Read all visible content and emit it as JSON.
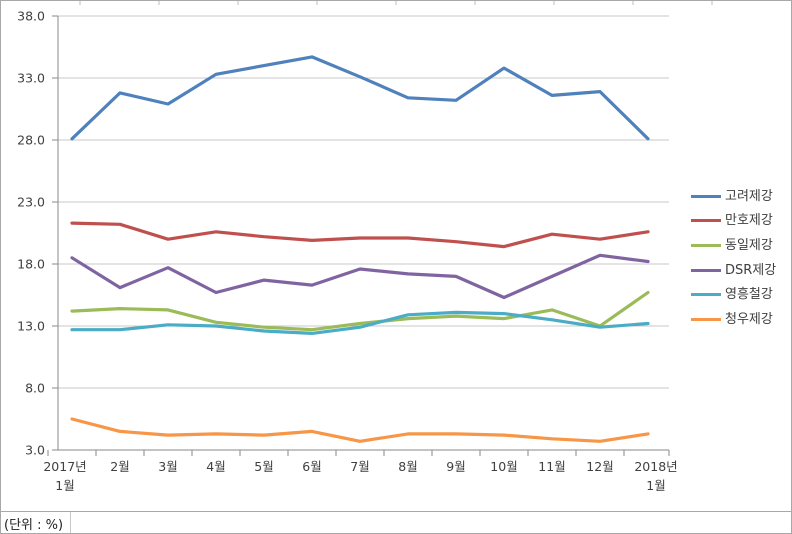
{
  "unit_label": "(단위 : %)",
  "chart_data": {
    "type": "line",
    "title": "",
    "categories": [
      "2017년 1월",
      "2월",
      "3월",
      "4월",
      "5월",
      "6월",
      "7월",
      "8월",
      "9월",
      "10월",
      "11월",
      "12월",
      "2018년 1월"
    ],
    "series": [
      {
        "name": "고려제강",
        "color": "#4F81BD",
        "values": [
          28.1,
          31.8,
          30.9,
          33.3,
          34.0,
          34.7,
          33.1,
          31.4,
          31.2,
          33.8,
          31.6,
          31.9,
          28.1
        ]
      },
      {
        "name": "만호제강",
        "color": "#C0504D",
        "values": [
          21.3,
          21.2,
          20.0,
          20.6,
          20.2,
          19.9,
          20.1,
          20.1,
          19.8,
          19.4,
          20.4,
          20.0,
          20.6
        ]
      },
      {
        "name": "동일제강",
        "color": "#9BBB59",
        "values": [
          14.2,
          14.4,
          14.3,
          13.3,
          12.9,
          12.7,
          13.2,
          13.6,
          13.8,
          13.6,
          14.3,
          13.0,
          15.7
        ]
      },
      {
        "name": "DSR제강",
        "color": "#8064A2",
        "values": [
          18.5,
          16.1,
          17.7,
          15.7,
          16.7,
          16.3,
          17.6,
          17.2,
          17.0,
          15.3,
          17.0,
          18.7,
          18.2
        ]
      },
      {
        "name": "영흥철강",
        "color": "#4BACC6",
        "values": [
          12.7,
          12.7,
          13.1,
          13.0,
          12.6,
          12.4,
          12.9,
          13.9,
          14.1,
          14.0,
          13.5,
          12.9,
          13.2
        ]
      },
      {
        "name": "청우제강",
        "color": "#F79646",
        "values": [
          5.5,
          4.5,
          4.2,
          4.3,
          4.2,
          4.5,
          3.7,
          4.3,
          4.3,
          4.2,
          3.9,
          3.7,
          4.3
        ]
      }
    ],
    "ylim": [
      3.0,
      38.0
    ],
    "ytick_step": 5.0,
    "ytick_labels": [
      "3.0",
      "8.0",
      "13.0",
      "18.0",
      "23.0",
      "28.0",
      "33.0",
      "38.0"
    ],
    "xlabel": "",
    "ylabel": "",
    "grid": true,
    "legend_position": "right",
    "colors": {
      "gridline": "#C9C9C9",
      "axis": "#8A8A8A",
      "tick_text": "#404040",
      "sheet_line": "#BFBFBF"
    }
  }
}
